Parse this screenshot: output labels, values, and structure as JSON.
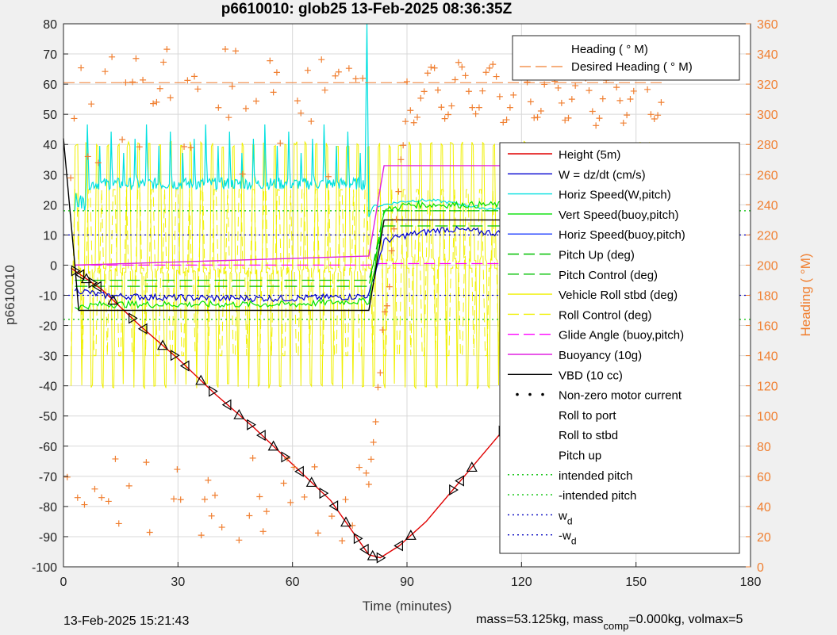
{
  "colors": {
    "background": "#f0f0f0",
    "axes_bg": "#ffffff",
    "heading": "#f07f30",
    "depth_red": "#e00000",
    "w_blue": "#0000d0",
    "horiz_cyan": "#00e0e0",
    "vert_green": "#00e000",
    "horiz_buoy_blue": "#2040ff",
    "pitch_green": "#00c000",
    "roll_yellow": "#f0f000",
    "glide_magenta": "#ff00ff",
    "buoy_magenta": "#e020e0",
    "vbd_black": "#000000",
    "intended_green": "#00c000",
    "wd_blue": "#0000c0"
  },
  "chart_data": {
    "type": "line",
    "title": "p6610010: glob25 13-Feb-2025 08:36:35Z",
    "xlabel": "Time (minutes)",
    "ylabel": "p6610010",
    "ylabel_right": "Heading (  °M)",
    "xlim": [
      0,
      180
    ],
    "ylim": [
      -100,
      80
    ],
    "ylim_right": [
      0,
      360
    ],
    "xticks": [
      "0",
      "30",
      "60",
      "90",
      "120",
      "150",
      "180"
    ],
    "yticks": [
      "80",
      "70",
      "60",
      "50",
      "40",
      "30",
      "20",
      "10",
      "0",
      "-10",
      "-20",
      "-30",
      "-40",
      "-50",
      "-60",
      "-70",
      "-80",
      "-90",
      "-100"
    ],
    "yticks_right": [
      "360",
      "340",
      "320",
      "300",
      "280",
      "260",
      "240",
      "220",
      "200",
      "180",
      "160",
      "140",
      "120",
      "100",
      "80",
      "60",
      "40",
      "20",
      "0"
    ],
    "grid": true,
    "top_legend": [
      {
        "label": "Heading (  ° M)",
        "style": "plus",
        "color": "#f07f30"
      },
      {
        "label": "Desired Heading (    ° M)",
        "style": "dash",
        "color": "#f07f30"
      }
    ],
    "legend": [
      {
        "label": "Height (5m)",
        "style": "solid",
        "color": "#e00000"
      },
      {
        "label": "W = dz/dt (cm/s)",
        "style": "solid",
        "color": "#0000d0"
      },
      {
        "label": "Horiz Speed(W,pitch)",
        "style": "solid",
        "color": "#00e0e0"
      },
      {
        "label": "Vert Speed(buoy,pitch)",
        "style": "solid",
        "color": "#00e000"
      },
      {
        "label": "Horiz Speed(buoy,pitch)",
        "style": "solid",
        "color": "#2040ff"
      },
      {
        "label": "Pitch Up (deg)",
        "style": "dash",
        "color": "#00c000"
      },
      {
        "label": "Pitch Control (deg)",
        "style": "dash",
        "color": "#00c000"
      },
      {
        "label": "Vehicle Roll stbd (deg)",
        "style": "solid",
        "color": "#f0f000"
      },
      {
        "label": "Roll Control (deg)",
        "style": "dash",
        "color": "#f0f000"
      },
      {
        "label": "Glide Angle (buoy,pitch)",
        "style": "dash",
        "color": "#ff00ff"
      },
      {
        "label": "Buoyancy (10g)",
        "style": "solid",
        "color": "#e020e0"
      },
      {
        "label": "VBD (10 cc)",
        "style": "solid",
        "color": "#000000"
      },
      {
        "label": "Non-zero motor current",
        "style": "dots",
        "color": "#000000"
      },
      {
        "label": "Roll to port",
        "style": "tri-left",
        "color": "#000000"
      },
      {
        "label": "Roll to stbd",
        "style": "tri-right",
        "color": "#000000"
      },
      {
        "label": "Pitch up",
        "style": "tri-up",
        "color": "#000000"
      },
      {
        "label": "intended pitch",
        "style": "dot",
        "color": "#00c000"
      },
      {
        "label": "-intended pitch",
        "style": "dot",
        "color": "#00c000"
      },
      {
        "label": "w",
        "sub": "d",
        "style": "dot",
        "color": "#0000c0"
      },
      {
        "label": "-w",
        "sub": "d",
        "style": "dot",
        "color": "#0000c0"
      }
    ],
    "series": [
      {
        "name": "Height (5m)",
        "x": [
          2,
          10,
          20,
          30,
          40,
          50,
          60,
          70,
          80,
          83,
          88,
          95,
          105,
          115,
          125,
          135,
          145,
          152,
          157
        ],
        "y": [
          -1,
          -8,
          -20,
          -31,
          -43,
          -54,
          -66,
          -78,
          -96,
          -97,
          -93,
          -85,
          -70,
          -55,
          -42,
          -30,
          -17,
          -6,
          0
        ]
      },
      {
        "name": "W = dz/dt (cm/s)",
        "x": [
          3,
          10,
          20,
          40,
          60,
          75,
          80,
          84,
          90,
          100,
          110,
          120,
          130,
          140,
          150,
          157
        ],
        "y": [
          -8,
          -10,
          -10.5,
          -11,
          -11,
          -10.5,
          -10,
          8,
          10,
          12,
          11,
          10,
          10,
          10,
          11,
          14
        ]
      },
      {
        "name": "Vert Speed(buoy,pitch)",
        "x": [
          3,
          10,
          20,
          40,
          60,
          75,
          80,
          84,
          90,
          100,
          110,
          120,
          130,
          140,
          150,
          157
        ],
        "y": [
          -14,
          -13,
          -13,
          -13,
          -13,
          -12,
          -12,
          18,
          20,
          20,
          20,
          20,
          20,
          20,
          20,
          20
        ]
      },
      {
        "name": "Buoyancy (10g)",
        "x": [
          3,
          80,
          84,
          120,
          130,
          140,
          150,
          157
        ],
        "y": [
          0,
          3,
          33,
          33,
          33,
          34,
          36,
          39
        ]
      },
      {
        "name": "VBD (10 cc)",
        "x": [
          0,
          3,
          4,
          80,
          84,
          120,
          128,
          140,
          150,
          157
        ],
        "y": [
          42,
          0,
          -15,
          -15,
          15,
          15,
          19,
          21,
          21,
          21
        ]
      },
      {
        "name": "intended pitch",
        "x": [
          0,
          180
        ],
        "y": [
          18,
          18
        ]
      },
      {
        "name": "-intended pitch",
        "x": [
          0,
          180
        ],
        "y": [
          -18,
          -18
        ]
      },
      {
        "name": "w_d",
        "x": [
          0,
          180
        ],
        "y": [
          10,
          10
        ]
      },
      {
        "name": "-w_d",
        "x": [
          0,
          180
        ],
        "y": [
          -10,
          -10
        ]
      }
    ]
  },
  "footer": {
    "timestamp": "13-Feb-2025 15:21:43",
    "mass_text": "mass=53.125kg, mass",
    "comp_sub": "comp",
    "mass_rest": "=0.000kg, volmax=5"
  }
}
